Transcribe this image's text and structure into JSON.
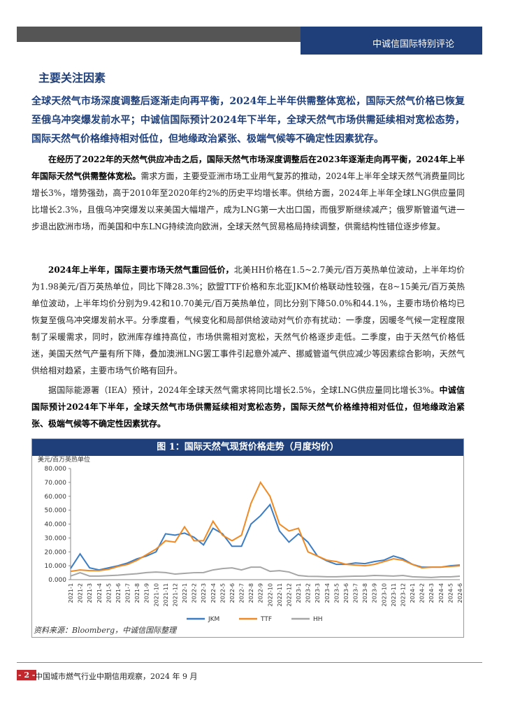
{
  "header": {
    "title": "中诚信国际特别评论"
  },
  "section": {
    "title": "主要关注因素"
  },
  "key_point": "全球天然气市场深度调整后逐渐走向再平衡，2024年上半年供需整体宽松，国际天然气价格已恢复至俄乌冲突爆发前水平；中诚信国际预计2024年下半年，全球天然气市场供需延续相对宽松态势，国际天然气价格维持相对低位，但地缘政治紧张、极端气候等不确定性因素犹存。",
  "paragraphs": [
    [
      {
        "text": "在经历了2022年的天然气供应冲击之后，国际天然气市场深度调整后在2023年逐渐走向再平衡，2024年上半年国际天然气供需整体宽松。",
        "bold": true
      },
      {
        "text": "需求方面，主要受亚洲市场工业用气复苏的推动，2024年上半年全球天然气消费量同比增长3%，增势强劲，高于2010年至2020年约2%的历史平均增长率。供给方面，2024年上半年全球LNG供应量同比增长2.3%，且俄乌冲突爆发以来美国大幅增产，成为LNG第一大出口国，而俄罗斯继续减产；俄罗斯管道气进一步退出欧洲市场，而美国和中东LNG持续流向欧洲，全球天然气贸易格局持续调整，供需结构性错位逐步修复。",
        "bold": false
      }
    ],
    [
      {
        "text": "2024年上半年，国际主要市场天然气重回低价，",
        "bold": true
      },
      {
        "text": "北美HH价格在1.5~2.7美元/百万英热单位波动，上半年均价为1.98美元/百万英热单位，同比下降28.3%；欧盟TTF价格和东北亚JKM价格联动性较强，在8~15美元/百万英热单位波动，上半年均价分别为9.42和10.70美元/百万英热单位，同比分别下降50.0%和44.1%，主要市场价格均已恢复至俄乌冲突爆发前水平。分季度看，气候变化和局部供给波动对气价亦有扰动：一季度，因暖冬气候一定程度限制了采暖需求，同时，欧洲库存维持高位，市场供需相对宽松，天然气价格逐步走低。二季度，由于天然气价格低迷，美国天然气产量有所下降，叠加澳洲LNG罢工事件引起意外减产、挪威管道气供应减少等因素综合影响，天然气供给相对趋紧，主要市场气价略有回升。",
        "bold": false
      }
    ],
    [
      {
        "text": "据国际能源署（IEA）预计，2024年全球天然气需求将同比增长2.5%，全球LNG供应量同比增长3%。",
        "bold": false
      },
      {
        "text": "中诚信国际预计2024年下半年，全球天然气市场供需延续相对宽松态势，国际天然气价格维持相对低位，但地缘政治紧张、极端气候等不确定性因素犹存。",
        "bold": true
      }
    ]
  ],
  "chart_data": {
    "type": "line",
    "title": "图 1：国际天然气现货价格走势（月度均价）",
    "y_label": "美元/百万英热单位",
    "categories": [
      "2021-1",
      "2021-2",
      "2021-3",
      "2021-4",
      "2021-5",
      "2021-6",
      "2021-7",
      "2021-8",
      "2021-9",
      "2021-10",
      "2021-11",
      "2021-12",
      "2022-1",
      "2022-2",
      "2022-3",
      "2022-4",
      "2022-5",
      "2022-6",
      "2022-7",
      "2022-8",
      "2022-9",
      "2022-10",
      "2022-11",
      "2022-12",
      "2023-1",
      "2023-2",
      "2023-3",
      "2023-4",
      "2023-5",
      "2023-6",
      "2023-7",
      "2023-8",
      "2023-9",
      "2023-10",
      "2023-11",
      "2023-12",
      "2024-1",
      "2024-2",
      "2024-3",
      "2024-4",
      "2024-5",
      "2024-6"
    ],
    "series": [
      {
        "name": "JKM",
        "color": "#3b7dc4",
        "values": [
          8,
          18.5,
          8.5,
          7,
          8.5,
          10,
          12,
          15,
          17,
          20,
          33,
          32,
          33.5,
          30.5,
          25,
          37,
          33,
          24,
          24,
          40,
          46,
          54,
          35,
          27,
          33,
          27,
          17,
          13.5,
          11,
          11,
          12,
          11.5,
          13,
          14,
          17,
          15,
          11,
          9,
          9,
          9,
          10,
          10.5
        ]
      },
      {
        "name": "TTF",
        "color": "#f08a24",
        "values": [
          6,
          7,
          6.5,
          6.5,
          7.5,
          9.5,
          11,
          14,
          18,
          22,
          28,
          27,
          38,
          28,
          28,
          42,
          32,
          28,
          32,
          55,
          70,
          60,
          40,
          35,
          37,
          20,
          17,
          14,
          13,
          11,
          10.5,
          10,
          11,
          13,
          15,
          14,
          11,
          8.5,
          9,
          9,
          9.5,
          10
        ]
      },
      {
        "name": "HH",
        "color": "#a6a6a6",
        "values": [
          2.6,
          5,
          2.6,
          2.6,
          2.9,
          3.2,
          3.8,
          4.3,
          5.1,
          5.5,
          5.1,
          4,
          4.5,
          5,
          5.1,
          7,
          8,
          8.5,
          7,
          9,
          9,
          6,
          6.5,
          5.5,
          3,
          2.4,
          2.3,
          2.1,
          2.1,
          2.3,
          2.5,
          2.6,
          3,
          2.8,
          2.6,
          3,
          2.1,
          1.8,
          1.6,
          2,
          2,
          2.5
        ]
      }
    ],
    "ylim": [
      0,
      80
    ],
    "yticks": [
      {
        "value": 0,
        "label": "0.000"
      },
      {
        "value": 10,
        "label": "10.000"
      },
      {
        "value": 20,
        "label": "20.000"
      },
      {
        "value": 30,
        "label": "30.000"
      },
      {
        "value": 40,
        "label": "40.000"
      },
      {
        "value": 50,
        "label": "50.000"
      },
      {
        "value": 60,
        "label": "60.000"
      },
      {
        "value": 70,
        "label": "70.000"
      },
      {
        "value": 80,
        "label": "80.000"
      }
    ],
    "grid": false,
    "legend": "bottom"
  },
  "source": "资料来源：Bloomberg，中诚信国际整理",
  "footer": {
    "page": "- 2 -",
    "text": "中国城市燃气行业中期信用观察，2024 年 9 月"
  }
}
